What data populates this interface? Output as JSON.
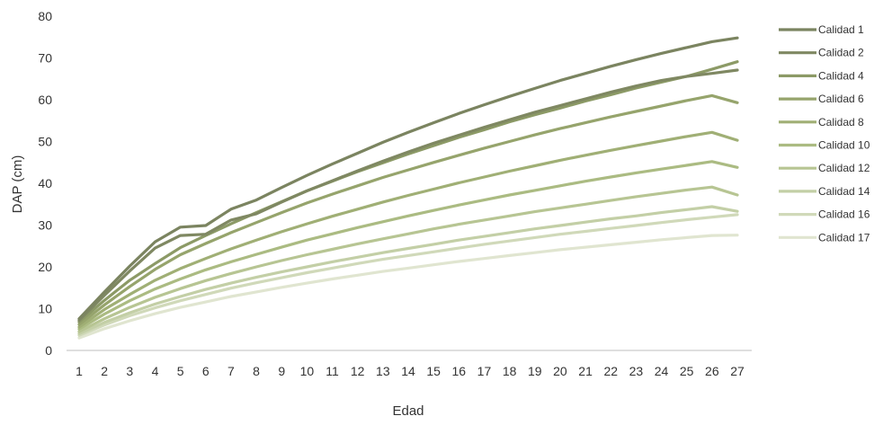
{
  "chart_data": {
    "type": "line",
    "title": "",
    "xlabel": "Edad",
    "ylabel": "DAP (cm)",
    "ylim": [
      0,
      80
    ],
    "y_ticks": [
      0,
      10,
      20,
      30,
      40,
      50,
      60,
      70,
      80
    ],
    "x": [
      1,
      2,
      3,
      4,
      5,
      6,
      7,
      8,
      9,
      10,
      11,
      12,
      13,
      14,
      15,
      16,
      17,
      18,
      19,
      20,
      21,
      22,
      23,
      24,
      25,
      26,
      27
    ],
    "grid": false,
    "legend_position": "right",
    "series": [
      {
        "name": "Calidad 1",
        "color": "#7b8460",
        "values": [
          7.6,
          14.0,
          20.2,
          26.0,
          29.5,
          29.9,
          33.8,
          36.0,
          39.0,
          41.9,
          44.6,
          47.2,
          49.8,
          52.2,
          54.5,
          56.7,
          58.8,
          60.8,
          62.7,
          64.6,
          66.3,
          68.0,
          69.6,
          71.1,
          72.5,
          73.9,
          74.8
        ]
      },
      {
        "name": "Calidad 2",
        "color": "#7f8862",
        "values": [
          7.2,
          13.2,
          19.0,
          24.5,
          27.5,
          27.8,
          31.2,
          32.7,
          35.5,
          38.2,
          40.6,
          43.0,
          45.3,
          47.5,
          49.6,
          51.5,
          53.4,
          55.2,
          57.0,
          58.6,
          60.2,
          61.8,
          63.3,
          64.6,
          65.6,
          66.3,
          67.1
        ]
      },
      {
        "name": "Calidad 4",
        "color": "#8c9a66",
        "values": [
          6.8,
          12.0,
          16.8,
          20.8,
          24.6,
          27.5,
          30.3,
          33.0,
          35.6,
          38.2,
          40.5,
          42.8,
          44.9,
          47.0,
          49.0,
          51.0,
          52.8,
          54.7,
          56.4,
          58.0,
          59.7,
          61.2,
          62.8,
          64.2,
          65.6,
          67.3,
          69.1
        ]
      },
      {
        "name": "Calidad 6",
        "color": "#96a46c",
        "values": [
          6.2,
          10.9,
          15.3,
          19.4,
          22.9,
          25.6,
          28.2,
          30.6,
          33.0,
          35.3,
          37.4,
          39.4,
          41.4,
          43.2,
          45.0,
          46.7,
          48.4,
          50.0,
          51.6,
          53.1,
          54.5,
          55.9,
          57.2,
          58.5,
          59.8,
          61.0,
          59.3
        ]
      },
      {
        "name": "Calidad 8",
        "color": "#a0af75",
        "values": [
          5.6,
          9.8,
          13.4,
          16.8,
          19.6,
          22.0,
          24.3,
          26.4,
          28.4,
          30.3,
          32.1,
          33.8,
          35.5,
          37.1,
          38.6,
          40.1,
          41.5,
          42.9,
          44.2,
          45.5,
          46.7,
          47.9,
          49.0,
          50.1,
          51.2,
          52.2,
          50.3
        ]
      },
      {
        "name": "Calidad 10",
        "color": "#abbb82",
        "values": [
          5.1,
          8.7,
          11.9,
          14.7,
          17.1,
          19.3,
          21.2,
          23.0,
          24.7,
          26.4,
          27.9,
          29.4,
          30.8,
          32.2,
          33.5,
          34.8,
          36.0,
          37.2,
          38.3,
          39.4,
          40.5,
          41.5,
          42.5,
          43.4,
          44.3,
          45.2,
          43.8
        ]
      },
      {
        "name": "Calidad 12",
        "color": "#b7c593",
        "values": [
          4.5,
          7.6,
          10.3,
          12.7,
          14.8,
          16.7,
          18.4,
          20.0,
          21.5,
          22.9,
          24.2,
          25.5,
          26.7,
          27.9,
          29.1,
          30.2,
          31.2,
          32.2,
          33.2,
          34.1,
          35.0,
          35.9,
          36.8,
          37.6,
          38.4,
          39.1,
          37.2
        ]
      },
      {
        "name": "Calidad 14",
        "color": "#c3cfa6",
        "values": [
          4.0,
          6.7,
          9.0,
          11.1,
          12.9,
          14.6,
          16.1,
          17.5,
          18.8,
          20.0,
          21.2,
          22.3,
          23.4,
          24.4,
          25.4,
          26.4,
          27.3,
          28.2,
          29.1,
          29.9,
          30.7,
          31.5,
          32.2,
          33.0,
          33.7,
          34.4,
          33.3
        ]
      },
      {
        "name": "Calidad 16",
        "color": "#d0d9b9",
        "values": [
          3.6,
          6.1,
          8.3,
          10.2,
          11.9,
          13.4,
          14.9,
          16.2,
          17.4,
          18.6,
          19.7,
          20.8,
          21.8,
          22.7,
          23.6,
          24.5,
          25.4,
          26.2,
          27.0,
          27.8,
          28.5,
          29.2,
          29.9,
          30.6,
          31.3,
          31.9,
          32.5
        ]
      },
      {
        "name": "Calidad 17",
        "color": "#e0e5d0",
        "values": [
          3.0,
          5.2,
          7.1,
          8.8,
          10.3,
          11.6,
          12.9,
          14.0,
          15.1,
          16.1,
          17.1,
          18.0,
          18.9,
          19.7,
          20.5,
          21.3,
          22.0,
          22.7,
          23.4,
          24.1,
          24.7,
          25.3,
          25.9,
          26.5,
          27.0,
          27.5,
          27.6
        ]
      }
    ]
  }
}
